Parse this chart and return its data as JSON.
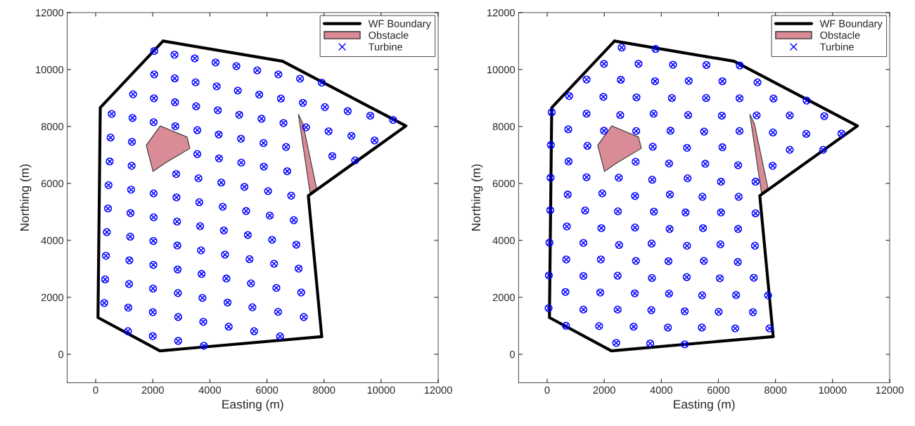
{
  "chart_data": [
    {
      "type": "scatter",
      "xlabel": "Easting (m)",
      "ylabel": "Northing (m)",
      "xlim": [
        -1000,
        12000
      ],
      "ylim": [
        -1000,
        12000
      ],
      "xticks": [
        0,
        2000,
        4000,
        6000,
        8000,
        10000,
        12000
      ],
      "yticks": [
        0,
        2000,
        4000,
        6000,
        8000,
        10000,
        12000
      ],
      "grid": false,
      "legend": "top right",
      "series": [
        {
          "name": "WF Boundary",
          "type": "line",
          "color": "#000000",
          "x": [
            2360,
            6550,
            10870,
            7450,
            7920,
            2250,
            80,
            160,
            2360
          ],
          "values": [
            11000,
            10290,
            8020,
            5570,
            620,
            120,
            1290,
            8660,
            11000
          ]
        },
        {
          "name": "Obstacle",
          "type": "area",
          "color": "#d98b96",
          "x": [
            2260,
            3200,
            3300,
            2440,
            2010,
            1770,
            2260
          ],
          "values": [
            8020,
            7630,
            7230,
            6720,
            6420,
            7340,
            8020
          ]
        },
        {
          "type": "area",
          "color": "#d98b96",
          "x": [
            7100,
            7260,
            7740,
            7510,
            7100
          ],
          "values": [
            8430,
            8100,
            5820,
            5670,
            8430
          ]
        },
        {
          "name": "Turbine",
          "color": "#0000ff",
          "marker": "cross",
          "x": [
            2050,
            2760,
            3470,
            4200,
            4930,
            5660,
            6400,
            7160,
            7920,
            2050,
            2770,
            3500,
            4240,
            4980,
            5730,
            6490,
            7260,
            8030,
            8830,
            9620,
            10420,
            1310,
            2040,
            2780,
            3520,
            4280,
            5030,
            5810,
            6580,
            7370,
            8160,
            8960,
            9770,
            560,
            1290,
            2030,
            2790,
            3560,
            4310,
            5090,
            5880,
            6670,
            8290,
            9090,
            520,
            1270,
            3560,
            4320,
            5100,
            5890,
            6710,
            490,
            1260,
            2820,
            3600,
            4400,
            5210,
            6040,
            6850,
            450,
            1240,
            2030,
            2830,
            3630,
            4450,
            5270,
            6100,
            6940,
            430,
            1220,
            2030,
            2850,
            3660,
            4490,
            5330,
            6180,
            7030,
            390,
            1210,
            2020,
            2860,
            3690,
            4530,
            5390,
            6250,
            7110,
            360,
            1180,
            2020,
            2870,
            3710,
            4580,
            5440,
            6330,
            7200,
            330,
            1170,
            2010,
            2880,
            3740,
            4620,
            5490,
            6390,
            7290,
            300,
            1140,
            2000,
            2890,
            3770,
            4660,
            5550,
            6460,
            1130,
            2000,
            2890,
            3790
          ],
          "values": [
            10650,
            10520,
            10390,
            10250,
            10120,
            9970,
            9830,
            9680,
            9540,
            9830,
            9690,
            9550,
            9410,
            9260,
            9120,
            8980,
            8830,
            8680,
            8540,
            8380,
            8230,
            9130,
            8990,
            8850,
            8710,
            8570,
            8410,
            8270,
            8120,
            7970,
            7830,
            7670,
            7510,
            8440,
            8300,
            8150,
            8010,
            7870,
            7720,
            7570,
            7420,
            7280,
            6960,
            6810,
            7610,
            7460,
            7030,
            6880,
            6730,
            6590,
            6430,
            6770,
            6620,
            6330,
            6180,
            6030,
            5880,
            5730,
            5570,
            5940,
            5780,
            5650,
            5510,
            5340,
            5180,
            5030,
            4870,
            4710,
            5120,
            4960,
            4810,
            4660,
            4500,
            4350,
            4190,
            4020,
            3850,
            4290,
            4130,
            3980,
            3820,
            3650,
            3500,
            3340,
            3180,
            3010,
            3460,
            3300,
            3140,
            2980,
            2820,
            2660,
            2490,
            2330,
            2170,
            2630,
            2470,
            2310,
            2150,
            1980,
            1820,
            1650,
            1490,
            1310,
            1800,
            1640,
            1480,
            1310,
            1140,
            970,
            810,
            630,
            810,
            640,
            470,
            300
          ]
        }
      ]
    },
    {
      "type": "scatter",
      "xlabel": "Easting (m)",
      "ylabel": "Northing (m)",
      "xlim": [
        -1000,
        12000
      ],
      "ylim": [
        -1000,
        12000
      ],
      "xticks": [
        0,
        2000,
        4000,
        6000,
        8000,
        10000,
        12000
      ],
      "yticks": [
        0,
        2000,
        4000,
        6000,
        8000,
        10000,
        12000
      ],
      "grid": false,
      "legend": "top right",
      "series": [
        {
          "name": "WF Boundary",
          "type": "line",
          "color": "#000000",
          "x": [
            2360,
            6550,
            10870,
            7450,
            7920,
            2250,
            80,
            160,
            2360
          ],
          "values": [
            11000,
            10290,
            8020,
            5570,
            620,
            120,
            1290,
            8660,
            11000
          ]
        },
        {
          "name": "Obstacle",
          "type": "area",
          "color": "#d98b96",
          "x": [
            2260,
            3200,
            3300,
            2440,
            2010,
            1770,
            2260
          ],
          "values": [
            8020,
            7630,
            7230,
            6720,
            6420,
            7340,
            8020
          ]
        },
        {
          "type": "area",
          "color": "#d98b96",
          "x": [
            7100,
            7260,
            7740,
            7510,
            7100
          ],
          "values": [
            8430,
            8100,
            5820,
            5670,
            8430
          ]
        },
        {
          "name": "Turbine",
          "color": "#0000ff",
          "marker": "cross",
          "x": [
            2610,
            3800,
            1990,
            3200,
            4410,
            5580,
            6750,
            1380,
            2580,
            3780,
            4960,
            6140,
            7370,
            770,
            1970,
            3130,
            4370,
            5570,
            6740,
            7930,
            9090,
            160,
            1380,
            2560,
            3730,
            4940,
            6120,
            7340,
            8500,
            9710,
            740,
            1990,
            3120,
            4320,
            5500,
            6740,
            7910,
            9080,
            10310,
            130,
            1410,
            3700,
            4900,
            6140,
            8500,
            9670,
            750,
            3100,
            4270,
            5540,
            6690,
            7900,
            120,
            1380,
            2510,
            3680,
            4920,
            6090,
            7300,
            720,
            1930,
            3080,
            4300,
            5440,
            6710,
            110,
            1330,
            2480,
            3740,
            4850,
            6090,
            7300,
            690,
            1900,
            3080,
            4290,
            5460,
            6690,
            80,
            1270,
            2520,
            3660,
            4900,
            6070,
            7280,
            670,
            1880,
            3110,
            4250,
            5490,
            6680,
            60,
            1270,
            2470,
            3670,
            4890,
            6050,
            7240,
            640,
            1860,
            3070,
            4270,
            5430,
            6620,
            7740,
            50,
            1270,
            2470,
            3650,
            4820,
            6010,
            7210,
            660,
            1820,
            3030,
            4230,
            5420,
            6590,
            7790,
            2420,
            3610,
            4820
          ],
          "values": [
            10770,
            10720,
            10200,
            10200,
            10170,
            10160,
            10140,
            9650,
            9640,
            9590,
            9600,
            9590,
            9550,
            9070,
            9040,
            9020,
            9000,
            9000,
            8990,
            8980,
            8910,
            8500,
            8450,
            8400,
            8450,
            8400,
            8380,
            8390,
            8390,
            8360,
            7900,
            7850,
            7840,
            7850,
            7820,
            7840,
            7790,
            7740,
            7750,
            7350,
            7320,
            7290,
            7250,
            7270,
            7180,
            7180,
            6770,
            6760,
            6700,
            6690,
            6640,
            6620,
            6200,
            6220,
            6200,
            6130,
            6180,
            6060,
            6060,
            5610,
            5650,
            5560,
            5610,
            5530,
            5530,
            5060,
            5050,
            5020,
            5010,
            4980,
            4980,
            4950,
            4490,
            4430,
            4450,
            4400,
            4430,
            4400,
            3920,
            3910,
            3840,
            3890,
            3810,
            3860,
            3810,
            3330,
            3330,
            3280,
            3270,
            3280,
            3240,
            2770,
            2750,
            2760,
            2680,
            2710,
            2670,
            2690,
            2190,
            2170,
            2140,
            2130,
            2070,
            2080,
            2070,
            1620,
            1570,
            1570,
            1550,
            1510,
            1490,
            1480,
            1000,
            990,
            970,
            940,
            940,
            910,
            910,
            400,
            380,
            350
          ]
        }
      ]
    }
  ]
}
